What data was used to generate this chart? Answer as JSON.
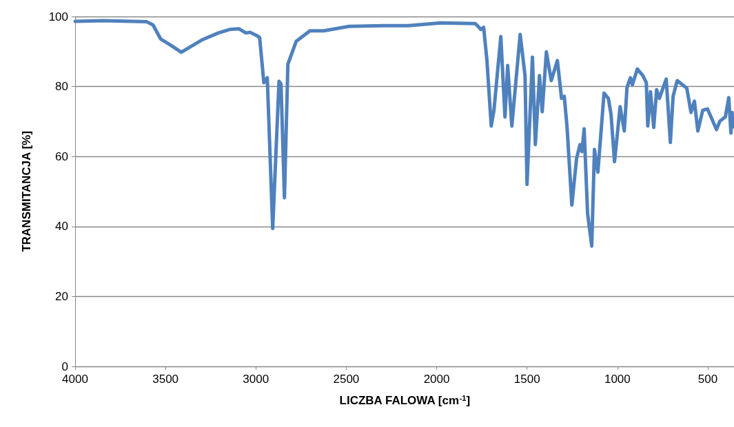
{
  "chart_data": {
    "type": "line",
    "xlabel": "LICZBA FALOWA [cm$^{-1}$]",
    "ylabel": "TRANSMITANCJA [%]",
    "xlim": [
      4000,
      355
    ],
    "xticks": [
      4000,
      3500,
      3000,
      2500,
      2000,
      1500,
      1000,
      500
    ],
    "ylim": [
      0,
      100
    ],
    "yticks": [
      0,
      20,
      40,
      60,
      80,
      100
    ],
    "grid": "y",
    "marker": "none",
    "line_style": "solid",
    "series": [
      {
        "color": "#4f81bd",
        "x": [
          4000,
          3844,
          3604,
          3569,
          3527,
          3474,
          3413,
          3299,
          3208,
          3146,
          3093,
          3055,
          3032,
          2986,
          2979,
          2956,
          2937,
          2907,
          2872,
          2861,
          2842,
          2823,
          2777,
          2701,
          2625,
          2484,
          2294,
          2156,
          1977,
          1786,
          1755,
          1740,
          1722,
          1698,
          1683,
          1645,
          1622,
          1607,
          1584,
          1538,
          1511,
          1500,
          1470,
          1454,
          1431,
          1416,
          1393,
          1366,
          1332,
          1309,
          1294,
          1279,
          1252,
          1226,
          1207,
          1196,
          1184,
          1165,
          1142,
          1127,
          1108,
          1074,
          1050,
          1035,
          1016,
          985,
          962,
          947,
          928,
          917,
          890,
          859,
          840,
          832,
          817,
          799,
          783,
          768,
          730,
          707,
          692,
          669,
          616,
          593,
          574,
          555,
          528,
          502,
          479,
          452,
          433,
          403,
          384,
          372,
          365,
          358
        ],
        "values": [
          98.6,
          98.8,
          98.5,
          97.6,
          93.6,
          91.9,
          89.8,
          93.3,
          95.3,
          96.3,
          96.5,
          95.3,
          95.5,
          94.3,
          93.9,
          81.1,
          82.5,
          39.4,
          81.5,
          80.7,
          48.2,
          86.4,
          92.9,
          95.9,
          95.9,
          97.2,
          97.4,
          97.4,
          98.2,
          98.0,
          96.3,
          96.9,
          87.6,
          68.7,
          73.2,
          94.3,
          71.3,
          86.0,
          68.7,
          94.9,
          83.1,
          52.0,
          88.4,
          63.4,
          83.1,
          72.8,
          89.9,
          81.7,
          87.4,
          76.6,
          77.2,
          68.7,
          46.1,
          59.4,
          63.4,
          61.4,
          67.9,
          43.7,
          34.4,
          62.0,
          55.5,
          78.1,
          76.6,
          71.9,
          58.5,
          74.2,
          67.3,
          79.7,
          82.5,
          80.5,
          85.0,
          83.1,
          81.1,
          68.7,
          78.5,
          68.3,
          79.1,
          76.6,
          82.1,
          64.0,
          77.2,
          81.7,
          79.5,
          72.6,
          75.8,
          67.3,
          73.2,
          73.6,
          70.9,
          67.7,
          70.1,
          71.3,
          76.8,
          66.7,
          72.6,
          68.5
        ]
      }
    ]
  }
}
